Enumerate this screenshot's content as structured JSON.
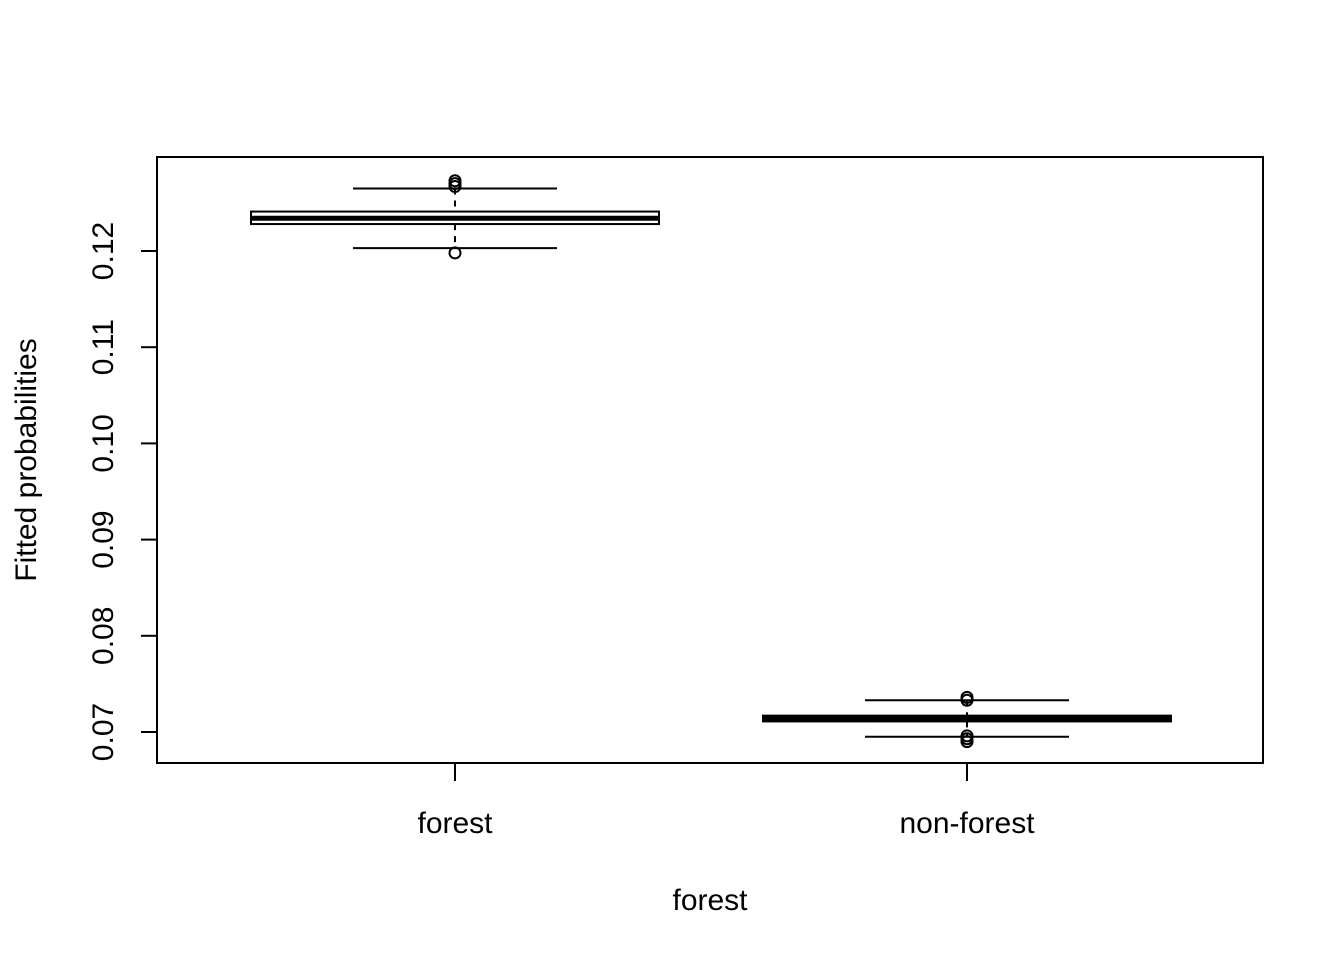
{
  "chart_data": {
    "type": "boxplot",
    "title": "",
    "xlabel": "forest",
    "ylabel": "Fitted probabilities",
    "ylim": [
      0.0668,
      0.1297
    ],
    "yticks": [
      0.07,
      0.08,
      0.09,
      0.1,
      0.11,
      0.12
    ],
    "ytick_labels": [
      "0.07",
      "0.08",
      "0.09",
      "0.10",
      "0.11",
      "0.12"
    ],
    "categories": [
      "forest",
      "non-forest"
    ],
    "boxes": [
      {
        "category": "forest",
        "whisker_low": 0.1203,
        "q1": 0.1228,
        "median": 0.1234,
        "q3": 0.1241,
        "whisker_high": 0.1265,
        "outliers": [
          0.1198,
          0.1267,
          0.127,
          0.1273
        ]
      },
      {
        "category": "non-forest",
        "whisker_low": 0.0695,
        "q1": 0.0711,
        "median": 0.0714,
        "q3": 0.0717,
        "whisker_high": 0.0733,
        "outliers": [
          0.069,
          0.0693,
          0.0696,
          0.0733,
          0.0736
        ]
      }
    ],
    "grid": false,
    "legend": "none",
    "colors": {
      "stroke": "#000000",
      "background": "#ffffff"
    }
  }
}
